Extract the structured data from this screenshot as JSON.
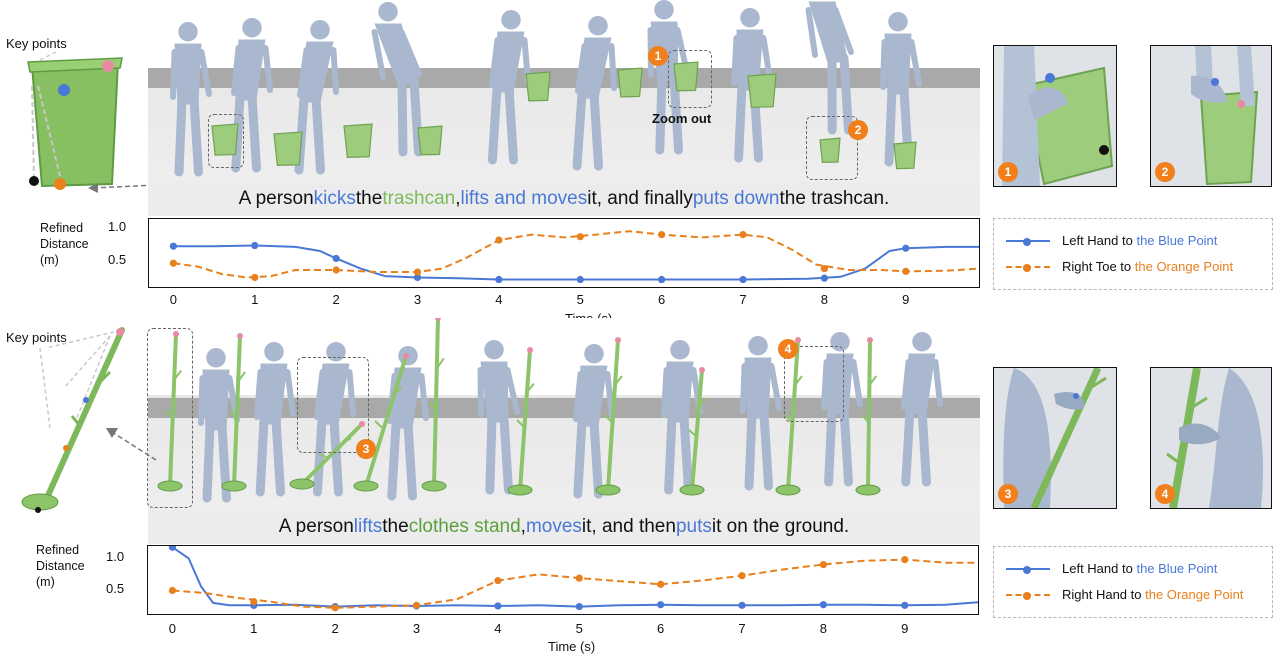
{
  "top": {
    "keypoints_label": "Key points",
    "zoom_out_label": "Zoom out",
    "caption": {
      "p1": "A person ",
      "verb1": "kicks",
      "p2": " the ",
      "object": "trashcan",
      "p3": ", ",
      "verb2": "lifts and moves",
      "p4": " it, and finally ",
      "verb3": "puts down",
      "p5": " the trashcan."
    },
    "ylabel": [
      "Refined",
      "Distance",
      "(m)"
    ],
    "ytick_labels": [
      "1.0",
      "0.5"
    ],
    "x_ticks": [
      "0",
      "1",
      "2",
      "3",
      "4",
      "5",
      "6",
      "7",
      "8",
      "9"
    ],
    "xlabel": "Time (s)",
    "legend": {
      "item1_prefix": "Left Hand to ",
      "item1_target": "the Blue Point",
      "item2_prefix": "Right Toe to ",
      "item2_target": "the Orange Point"
    },
    "badges": [
      "1",
      "2"
    ]
  },
  "bottom": {
    "keypoints_label": "Key points",
    "caption": {
      "p1": "A person ",
      "verb1": "lifts",
      "p2": " the ",
      "object": "clothes stand",
      "p3": ", ",
      "verb2": "moves",
      "p4": " it, and then ",
      "verb3": "puts",
      "p5": " it on the ground."
    },
    "ylabel": [
      "Refined",
      "Distance",
      "(m)"
    ],
    "ytick_labels": [
      "1.0",
      "0.5"
    ],
    "x_ticks": [
      "0",
      "1",
      "2",
      "3",
      "4",
      "5",
      "6",
      "7",
      "8",
      "9"
    ],
    "xlabel": "Time (s)",
    "legend": {
      "item1_prefix": "Left Hand to ",
      "item1_target": "the Blue Point",
      "item2_prefix": "Right Hand to ",
      "item2_target": "the Orange Point"
    },
    "badges": [
      "3",
      "4"
    ]
  },
  "colors": {
    "blue": "#4a78d6",
    "orange": "#e8801e",
    "object_green": "#9ccc7c",
    "human": "#a9b8cf"
  },
  "chart_data": [
    {
      "type": "line",
      "xlabel": "Time (s)",
      "ylabel": "Refined Distance (m)",
      "x_range": [
        -0.3,
        9.9
      ],
      "ylim": [
        0.15,
        1.15
      ],
      "x_ticks": [
        0,
        1,
        2,
        3,
        4,
        5,
        6,
        7,
        8,
        9
      ],
      "grid": false,
      "legend": "right",
      "series": [
        {
          "name": "Left Hand to the Blue Point",
          "color": "#4a78d6",
          "style": "solid",
          "curve": [
            [
              0,
              0.75
            ],
            [
              0.5,
              0.75
            ],
            [
              1,
              0.76
            ],
            [
              1.5,
              0.74
            ],
            [
              1.8,
              0.68
            ],
            [
              2,
              0.57
            ],
            [
              2.3,
              0.42
            ],
            [
              2.6,
              0.31
            ],
            [
              3,
              0.29
            ],
            [
              3.5,
              0.28
            ],
            [
              4,
              0.26
            ],
            [
              5,
              0.26
            ],
            [
              6,
              0.26
            ],
            [
              7,
              0.26
            ],
            [
              7.8,
              0.27
            ],
            [
              8.2,
              0.3
            ],
            [
              8.5,
              0.42
            ],
            [
              8.8,
              0.68
            ],
            [
              9,
              0.72
            ],
            [
              9.5,
              0.74
            ],
            [
              9.9,
              0.74
            ]
          ],
          "markers": [
            [
              0,
              0.75
            ],
            [
              1,
              0.76
            ],
            [
              2,
              0.57
            ],
            [
              3,
              0.29
            ],
            [
              4,
              0.26
            ],
            [
              5,
              0.26
            ],
            [
              6,
              0.26
            ],
            [
              7,
              0.26
            ],
            [
              8,
              0.28
            ],
            [
              9,
              0.72
            ]
          ]
        },
        {
          "name": "Right Toe to the Orange Point",
          "color": "#e8801e",
          "style": "dashed",
          "curve": [
            [
              0,
              0.5
            ],
            [
              0.3,
              0.45
            ],
            [
              0.6,
              0.34
            ],
            [
              0.9,
              0.29
            ],
            [
              1.2,
              0.31
            ],
            [
              1.5,
              0.4
            ],
            [
              2,
              0.4
            ],
            [
              2.5,
              0.37
            ],
            [
              3,
              0.37
            ],
            [
              3.3,
              0.42
            ],
            [
              3.6,
              0.58
            ],
            [
              4,
              0.84
            ],
            [
              4.4,
              0.92
            ],
            [
              4.8,
              0.88
            ],
            [
              5.2,
              0.92
            ],
            [
              5.6,
              0.97
            ],
            [
              6,
              0.92
            ],
            [
              6.5,
              0.88
            ],
            [
              7,
              0.92
            ],
            [
              7.3,
              0.88
            ],
            [
              7.6,
              0.7
            ],
            [
              7.9,
              0.48
            ],
            [
              8.3,
              0.4
            ],
            [
              8.7,
              0.4
            ],
            [
              9,
              0.38
            ],
            [
              9.5,
              0.39
            ],
            [
              9.9,
              0.42
            ]
          ],
          "markers": [
            [
              0,
              0.5
            ],
            [
              1,
              0.29
            ],
            [
              2,
              0.4
            ],
            [
              3,
              0.37
            ],
            [
              4,
              0.84
            ],
            [
              5,
              0.89
            ],
            [
              6,
              0.92
            ],
            [
              7,
              0.92
            ],
            [
              8,
              0.42
            ],
            [
              9,
              0.38
            ]
          ]
        }
      ]
    },
    {
      "type": "line",
      "xlabel": "Time (s)",
      "ylabel": "Refined Distance (m)",
      "x_range": [
        -0.3,
        9.9
      ],
      "ylim": [
        0.1,
        1.2
      ],
      "x_ticks": [
        0,
        1,
        2,
        3,
        4,
        5,
        6,
        7,
        8,
        9
      ],
      "grid": false,
      "legend": "right",
      "series": [
        {
          "name": "Left Hand to the Blue Point",
          "color": "#4a78d6",
          "style": "solid",
          "curve": [
            [
              0,
              1.18
            ],
            [
              0.2,
              1.0
            ],
            [
              0.35,
              0.55
            ],
            [
              0.5,
              0.28
            ],
            [
              0.7,
              0.24
            ],
            [
              1,
              0.24
            ],
            [
              1.5,
              0.25
            ],
            [
              2,
              0.22
            ],
            [
              2.5,
              0.24
            ],
            [
              3,
              0.23
            ],
            [
              3.5,
              0.24
            ],
            [
              4,
              0.23
            ],
            [
              4.5,
              0.24
            ],
            [
              5,
              0.22
            ],
            [
              5.5,
              0.24
            ],
            [
              6,
              0.25
            ],
            [
              6.5,
              0.24
            ],
            [
              7,
              0.24
            ],
            [
              7.5,
              0.24
            ],
            [
              8,
              0.25
            ],
            [
              8.5,
              0.25
            ],
            [
              9,
              0.24
            ],
            [
              9.5,
              0.25
            ],
            [
              9.9,
              0.29
            ]
          ],
          "markers": [
            [
              0,
              1.18
            ],
            [
              1,
              0.24
            ],
            [
              2,
              0.22
            ],
            [
              3,
              0.23
            ],
            [
              4,
              0.23
            ],
            [
              5,
              0.22
            ],
            [
              6,
              0.25
            ],
            [
              7,
              0.24
            ],
            [
              8,
              0.25
            ],
            [
              9,
              0.24
            ]
          ]
        },
        {
          "name": "Right Hand to the Orange Point",
          "color": "#e8801e",
          "style": "dashed",
          "curve": [
            [
              0,
              0.48
            ],
            [
              0.4,
              0.44
            ],
            [
              0.8,
              0.36
            ],
            [
              1.2,
              0.3
            ],
            [
              1.6,
              0.22
            ],
            [
              2,
              0.2
            ],
            [
              2.5,
              0.22
            ],
            [
              3,
              0.24
            ],
            [
              3.5,
              0.34
            ],
            [
              4,
              0.64
            ],
            [
              4.5,
              0.74
            ],
            [
              5,
              0.68
            ],
            [
              5.5,
              0.63
            ],
            [
              6,
              0.58
            ],
            [
              6.5,
              0.64
            ],
            [
              7,
              0.72
            ],
            [
              7.5,
              0.82
            ],
            [
              8,
              0.9
            ],
            [
              8.5,
              0.96
            ],
            [
              9,
              0.98
            ],
            [
              9.5,
              0.93
            ],
            [
              9.9,
              0.93
            ]
          ],
          "markers": [
            [
              0,
              0.48
            ],
            [
              1,
              0.3
            ],
            [
              2,
              0.2
            ],
            [
              3,
              0.24
            ],
            [
              4,
              0.64
            ],
            [
              5,
              0.68
            ],
            [
              6,
              0.58
            ],
            [
              7,
              0.72
            ],
            [
              8,
              0.9
            ],
            [
              9,
              0.98
            ]
          ]
        }
      ]
    }
  ]
}
